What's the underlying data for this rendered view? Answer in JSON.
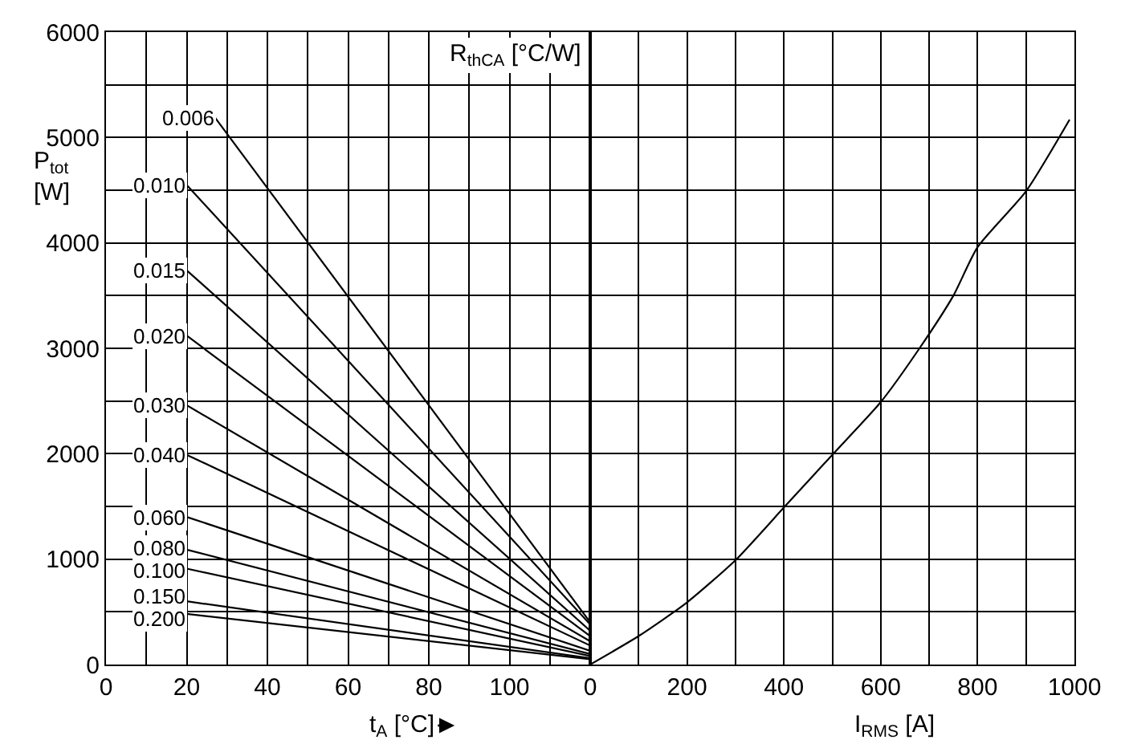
{
  "chart_data": [
    {
      "type": "line",
      "xlabel": "t$_{A}$ [°C]",
      "ylabel": "P$_{tot}$ [W]",
      "annotations": [
        "R$_{thCA}$ [°C/W]"
      ],
      "grid": true,
      "marker": "none",
      "line_style": "solid",
      "xlim": [
        0,
        120
      ],
      "xticks": [
        0,
        {
          "value": 10,
          "label": null
        },
        20,
        {
          "value": 30,
          "label": null
        },
        40,
        {
          "value": 50,
          "label": null
        },
        60,
        {
          "value": 70,
          "label": null
        },
        80,
        {
          "value": 90,
          "label": null
        },
        100,
        {
          "value": 110,
          "label": null
        },
        {
          "value": 120,
          "label": null
        }
      ],
      "ylim": [
        0,
        6000
      ],
      "yticks": [
        0,
        {
          "value": 500,
          "label": null
        },
        1000,
        {
          "value": 1500,
          "label": null
        },
        2000,
        {
          "value": 2500,
          "label": null
        },
        3000,
        {
          "value": 3500,
          "label": null
        },
        4000,
        {
          "value": 4500,
          "label": null
        },
        5000,
        {
          "value": 5500,
          "label": null
        },
        6000
      ],
      "series": [
        {
          "name": "0.006",
          "color": "#000000",
          "x": [
            27,
            120
          ],
          "values": [
            5190,
            400
          ]
        },
        {
          "name": "0.010",
          "color": "#000000",
          "x": [
            20,
            120
          ],
          "values": [
            4550,
            380
          ]
        },
        {
          "name": "0.015",
          "color": "#000000",
          "x": [
            20,
            120
          ],
          "values": [
            3740,
            320
          ]
        },
        {
          "name": "0.020",
          "color": "#000000",
          "x": [
            20,
            120
          ],
          "values": [
            3120,
            270
          ]
        },
        {
          "name": "0.030",
          "color": "#000000",
          "x": [
            20,
            120
          ],
          "values": [
            2460,
            220
          ]
        },
        {
          "name": "0.040",
          "color": "#000000",
          "x": [
            20,
            120
          ],
          "values": [
            1990,
            180
          ]
        },
        {
          "name": "0.060",
          "color": "#000000",
          "x": [
            20,
            120
          ],
          "values": [
            1400,
            130
          ]
        },
        {
          "name": "0.080",
          "color": "#000000",
          "x": [
            20,
            120
          ],
          "values": [
            1090,
            100
          ]
        },
        {
          "name": "0.100",
          "color": "#000000",
          "x": [
            20,
            120
          ],
          "values": [
            910,
            80
          ]
        },
        {
          "name": "0.150",
          "color": "#000000",
          "x": [
            20,
            120
          ],
          "values": [
            600,
            60
          ]
        },
        {
          "name": "0.200",
          "color": "#000000",
          "x": [
            20,
            120
          ],
          "values": [
            480,
            50
          ]
        }
      ]
    },
    {
      "type": "line",
      "xlabel": "I$_{RMS}$ [A]",
      "grid": true,
      "marker": "none",
      "line_style": "solid",
      "tick_labels": "x",
      "xlim": [
        0,
        1000
      ],
      "xticks": [
        0,
        {
          "value": 100,
          "label": null
        },
        200,
        {
          "value": 300,
          "label": null
        },
        400,
        {
          "value": 500,
          "label": null
        },
        600,
        {
          "value": 700,
          "label": null
        },
        800,
        {
          "value": 900,
          "label": null
        },
        1000
      ],
      "ylim": [
        0,
        6000
      ],
      "yticks": [
        0,
        {
          "value": 500,
          "label": null
        },
        1000,
        {
          "value": 1500,
          "label": null
        },
        2000,
        {
          "value": 2500,
          "label": null
        },
        3000,
        {
          "value": 3500,
          "label": null
        },
        4000,
        {
          "value": 4500,
          "label": null
        },
        5000,
        {
          "value": 5500,
          "label": null
        },
        6000
      ],
      "series": [
        {
          "color": "#000000",
          "x": [
            0,
            100,
            200,
            300,
            400,
            500,
            600,
            680,
            750,
            800,
            900,
            990
          ],
          "values": [
            0,
            270,
            590,
            990,
            1490,
            1990,
            2490,
            3000,
            3500,
            3960,
            4490,
            5170
          ]
        }
      ]
    }
  ]
}
